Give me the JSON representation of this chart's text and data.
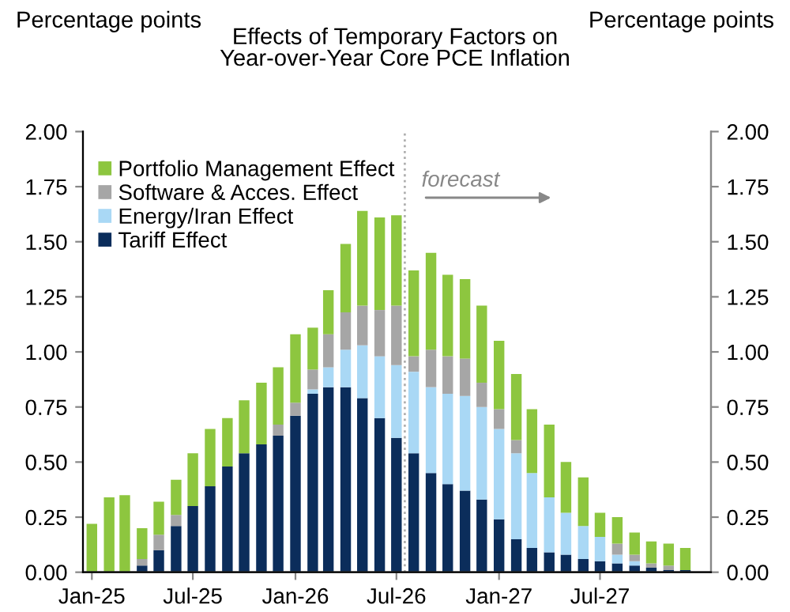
{
  "chart_data": {
    "type": "bar",
    "stacked": true,
    "title": "Effects of Temporary Factors on\nYear-over-Year Core PCE Inflation",
    "ylabel": "Percentage points",
    "y2label": "Percentage points",
    "x": [
      "2025-01",
      "2025-02",
      "2025-03",
      "2025-04",
      "2025-05",
      "2025-06",
      "2025-07",
      "2025-08",
      "2025-09",
      "2025-10",
      "2025-11",
      "2025-12",
      "2026-01",
      "2026-02",
      "2026-03",
      "2026-04",
      "2026-05",
      "2026-06",
      "2026-07",
      "2026-08",
      "2026-09",
      "2026-10",
      "2026-11",
      "2026-12",
      "2027-01",
      "2027-02",
      "2027-03",
      "2027-04",
      "2027-05",
      "2027-06",
      "2027-07",
      "2027-08",
      "2027-09",
      "2027-10",
      "2027-11",
      "2027-12"
    ],
    "xlim": [
      "2024-12-16",
      "2028-01-16"
    ],
    "xticks": [
      {
        "value": "2025-01",
        "label": "Jan-25"
      },
      {
        "value": "2025-07",
        "label": "Jul-25"
      },
      {
        "value": "2026-01",
        "label": "Jan-26"
      },
      {
        "value": "2026-07",
        "label": "Jul-26"
      },
      {
        "value": "2027-01",
        "label": "Jan-27"
      },
      {
        "value": "2027-07",
        "label": "Jul-27"
      }
    ],
    "series": [
      {
        "name": "Tariff Effect",
        "color": "#0b2d5b",
        "values": [
          0,
          0,
          0,
          0.03,
          0.1,
          0.21,
          0.3,
          0.39,
          0.48,
          0.54,
          0.58,
          0.62,
          0.71,
          0.81,
          0.84,
          0.84,
          0.79,
          0.7,
          0.61,
          0.54,
          0.45,
          0.4,
          0.37,
          0.33,
          0.24,
          0.15,
          0.11,
          0.09,
          0.08,
          0.06,
          0.05,
          0.04,
          0.03,
          0.02,
          0.01,
          0.01
        ]
      },
      {
        "name": "Energy/Iran Effect",
        "color": "#a9d8f5",
        "values": [
          0,
          0,
          0,
          0,
          0,
          0,
          0,
          0,
          0,
          0,
          0,
          0,
          0,
          0.02,
          0.09,
          0.17,
          0.24,
          0.28,
          0.33,
          0.37,
          0.39,
          0.41,
          0.43,
          0.42,
          0.41,
          0.39,
          0.34,
          0.25,
          0.19,
          0.15,
          0.11,
          0.04,
          0.02,
          0,
          0,
          0
        ]
      },
      {
        "name": "Software & Acces. Effect",
        "color": "#a6a6a6",
        "values": [
          0,
          0,
          0,
          0.03,
          0.07,
          0.05,
          0,
          0,
          0,
          0,
          0,
          0.05,
          0.06,
          0.09,
          0.15,
          0.17,
          0.18,
          0.21,
          0.27,
          0.07,
          0.17,
          0.17,
          0.17,
          0.11,
          0.09,
          0.06,
          0,
          0,
          0,
          0,
          0,
          0.05,
          0.03,
          0.02,
          0.02,
          0
        ]
      },
      {
        "name": "Portfolio Management Effect",
        "color": "#8dc63f",
        "values": [
          0.22,
          0.34,
          0.35,
          0.14,
          0.15,
          0.16,
          0.24,
          0.26,
          0.22,
          0.24,
          0.28,
          0.26,
          0.31,
          0.19,
          0.2,
          0.31,
          0.43,
          0.42,
          0.41,
          0.39,
          0.44,
          0.37,
          0.36,
          0.35,
          0.31,
          0.3,
          0.29,
          0.33,
          0.23,
          0.22,
          0.11,
          0.12,
          0.1,
          0.1,
          0.1,
          0.1
        ]
      }
    ],
    "ylim": [
      0,
      2
    ],
    "yticks": [
      {
        "value": 0,
        "label": "0.00"
      },
      {
        "value": 0.25,
        "label": "0.25"
      },
      {
        "value": 0.5,
        "label": "0.50"
      },
      {
        "value": 0.75,
        "label": "0.75"
      },
      {
        "value": 1,
        "label": "1.00"
      },
      {
        "value": 1.25,
        "label": "1.25"
      },
      {
        "value": 1.5,
        "label": "1.50"
      },
      {
        "value": 1.75,
        "label": "1.75"
      },
      {
        "value": 2,
        "label": "2.00"
      }
    ],
    "y2lim": [
      0,
      2
    ],
    "y2ticks": [
      {
        "value": 0,
        "label": "0.00"
      },
      {
        "value": 0.25,
        "label": "0.25"
      },
      {
        "value": 0.5,
        "label": "0.50"
      },
      {
        "value": 0.75,
        "label": "0.75"
      },
      {
        "value": 1,
        "label": "1.00"
      },
      {
        "value": 1.25,
        "label": "1.25"
      },
      {
        "value": 1.5,
        "label": "1.50"
      },
      {
        "value": 1.75,
        "label": "1.75"
      },
      {
        "value": 2,
        "label": "2.00"
      }
    ],
    "ref_lines": [
      {
        "axis": "x",
        "value": "2026-07-16",
        "color": "#b0b0b0",
        "line_style": "dotted"
      }
    ],
    "annotations": [
      "forecast"
    ],
    "legend": "top left",
    "grid": false
  }
}
